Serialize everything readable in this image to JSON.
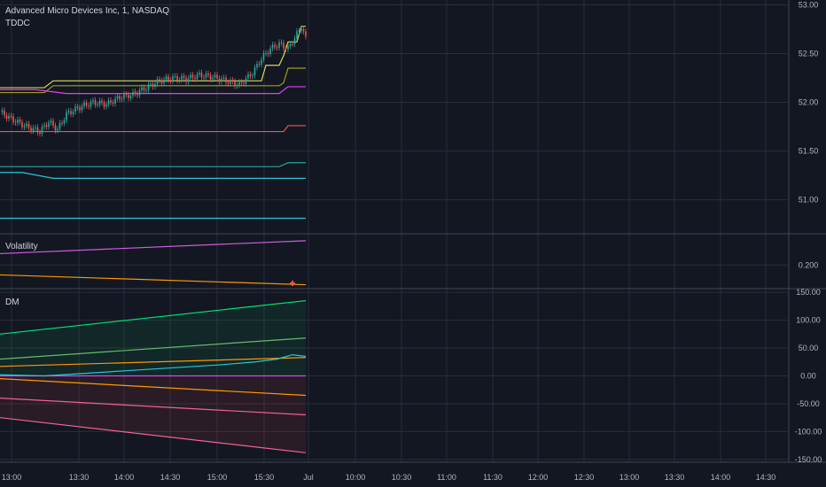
{
  "header": {
    "symbol": "Advanced Micro Devices Inc, 1, NASDAQ",
    "indicator": "TDDC"
  },
  "panes": {
    "vol_label": "Volatility",
    "dm_label": "DM"
  },
  "colors": {
    "bg": "#131722",
    "grid": "#2a2e39",
    "text": "#b2b5be",
    "separator": "#434651",
    "candle_up": "#26a69a",
    "candle_down": "#ef5350",
    "yellow": "#d7d75a",
    "olive": "#9e9e17",
    "magenta": "#e040fb",
    "red": "#ef5350",
    "teal": "#26a69a",
    "cyan": "#26c6da",
    "orange": "#ff9800",
    "green": "#00e676",
    "lightgreen": "#66bb6a",
    "pink": "#f06292",
    "vol_purple": "#d05ce3"
  },
  "chart_data": [
    {
      "type": "candlestick",
      "title": "Advanced Micro Devices Inc, 1, NASDAQ",
      "x_ticks": [
        "13:00",
        "13:30",
        "14:00",
        "14:30",
        "15:00",
        "15:30",
        "Jul",
        "10:00",
        "10:30",
        "11:00",
        "11:30",
        "12:00",
        "12:30",
        "13:00",
        "13:30",
        "14:00",
        "14:30"
      ],
      "y_ticks": [
        "53.00",
        "52.50",
        "52.00",
        "51.50",
        "51.00"
      ],
      "ylim": [
        50.66,
        53.05
      ],
      "close_path": [
        [
          0,
          51.9
        ],
        [
          6,
          51.82
        ],
        [
          12,
          51.75
        ],
        [
          18,
          51.7
        ],
        [
          22,
          51.8
        ],
        [
          26,
          51.72
        ],
        [
          30,
          51.88
        ],
        [
          36,
          51.95
        ],
        [
          42,
          52.0
        ],
        [
          48,
          51.98
        ],
        [
          54,
          52.05
        ],
        [
          60,
          52.08
        ],
        [
          66,
          52.15
        ],
        [
          72,
          52.22
        ],
        [
          78,
          52.25
        ],
        [
          84,
          52.24
        ],
        [
          90,
          52.28
        ],
        [
          96,
          52.26
        ],
        [
          102,
          52.22
        ],
        [
          108,
          52.18
        ],
        [
          114,
          52.3
        ],
        [
          118,
          52.45
        ],
        [
          122,
          52.55
        ],
        [
          126,
          52.6
        ],
        [
          130,
          52.55
        ],
        [
          134,
          52.7
        ],
        [
          136,
          52.78
        ],
        [
          138,
          52.65
        ]
      ],
      "bands": [
        {
          "color": "yellow",
          "path": [
            [
              0,
              52.15
            ],
            [
              20,
              52.15
            ],
            [
              24,
              52.22
            ],
            [
              118,
              52.22
            ],
            [
              120,
              52.38
            ],
            [
              126,
              52.38
            ],
            [
              128,
              52.48
            ],
            [
              130,
              52.62
            ],
            [
              134,
              52.62
            ],
            [
              136,
              52.78
            ],
            [
              138,
              52.78
            ]
          ]
        },
        {
          "color": "olive",
          "path": [
            [
              0,
              52.1
            ],
            [
              20,
              52.1
            ],
            [
              24,
              52.17
            ],
            [
              126,
              52.17
            ],
            [
              128,
              52.2
            ],
            [
              130,
              52.35
            ],
            [
              138,
              52.35
            ]
          ]
        },
        {
          "color": "magenta",
          "path": [
            [
              0,
              52.13
            ],
            [
              16,
              52.13
            ],
            [
              30,
              52.09
            ],
            [
              126,
              52.09
            ],
            [
              130,
              52.16
            ],
            [
              138,
              52.16
            ]
          ]
        },
        {
          "color": "red",
          "path": [
            [
              0,
              51.7
            ],
            [
              128,
              51.7
            ],
            [
              130,
              51.76
            ],
            [
              138,
              51.76
            ]
          ]
        },
        {
          "color": "teal",
          "path": [
            [
              0,
              51.34
            ],
            [
              126,
              51.34
            ],
            [
              130,
              51.38
            ],
            [
              138,
              51.38
            ]
          ]
        },
        {
          "color": "cyan",
          "path": [
            [
              0,
              51.28
            ],
            [
              10,
              51.28
            ],
            [
              24,
              51.22
            ],
            [
              130,
              51.22
            ],
            [
              138,
              51.22
            ]
          ]
        },
        {
          "color": "cyan",
          "path": [
            [
              0,
              50.81
            ],
            [
              138,
              50.81
            ]
          ]
        }
      ]
    },
    {
      "type": "line",
      "title": "Volatility",
      "y_ticks": [
        "0.200"
      ],
      "ylim": [
        0.17,
        0.24
      ],
      "series": [
        {
          "color": "vol_purple",
          "values": [
            [
              0,
              0.215
            ],
            [
              138,
              0.232
            ]
          ]
        },
        {
          "color": "orange",
          "values": [
            [
              0,
              0.187
            ],
            [
              138,
              0.174
            ]
          ]
        }
      ],
      "marker": {
        "x": 132,
        "y": 0.176,
        "color": "candle_down"
      }
    },
    {
      "type": "line",
      "title": "DM",
      "y_ticks": [
        "150.00",
        "100.00",
        "50.00",
        "0.00",
        "-50.00",
        "-100.00",
        "-150.00"
      ],
      "ylim": [
        -155,
        155
      ],
      "series": [
        {
          "color": "green",
          "values": [
            [
              0,
              75
            ],
            [
              138,
              135
            ]
          ]
        },
        {
          "color": "lightgreen",
          "values": [
            [
              0,
              30
            ],
            [
              138,
              68
            ]
          ]
        },
        {
          "color": "orange",
          "values": [
            [
              0,
              17
            ],
            [
              138,
              33
            ]
          ]
        },
        {
          "color": "magenta",
          "values": [
            [
              0,
              0
            ],
            [
              138,
              0
            ]
          ]
        },
        {
          "color": "orange",
          "values": [
            [
              0,
              -5
            ],
            [
              138,
              -35
            ]
          ]
        },
        {
          "color": "pink",
          "values": [
            [
              0,
              -40
            ],
            [
              138,
              -70
            ]
          ]
        },
        {
          "color": "pink",
          "values": [
            [
              0,
              -75
            ],
            [
              138,
              -138
            ]
          ]
        },
        {
          "color": "cyan",
          "values": [
            [
              0,
              2
            ],
            [
              20,
              0
            ],
            [
              40,
              5
            ],
            [
              60,
              10
            ],
            [
              80,
              15
            ],
            [
              100,
              20
            ],
            [
              115,
              25
            ],
            [
              125,
              30
            ],
            [
              132,
              38
            ],
            [
              138,
              35
            ]
          ]
        }
      ]
    }
  ]
}
